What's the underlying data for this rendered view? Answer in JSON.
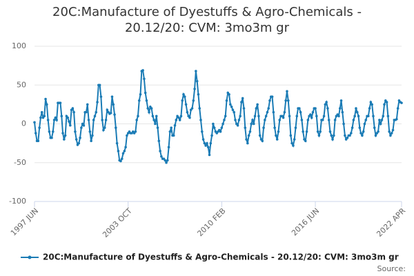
{
  "chart_data": {
    "type": "line",
    "title": "20C:Manufacture of Dyestuffs & Agro-Chemicals - 20.12/20: CVM: 3mo3m gr",
    "source": "Source:",
    "categories": [
      "1997 JUN",
      null,
      null,
      null,
      null,
      null,
      null,
      null,
      null,
      null,
      null,
      null,
      null,
      null,
      null,
      null,
      null,
      null,
      null,
      null,
      null,
      null,
      null,
      null,
      null,
      null,
      null,
      null,
      null,
      null,
      null,
      null,
      null,
      null,
      null,
      null,
      null,
      null,
      null,
      null,
      null,
      null,
      null,
      null,
      null,
      null,
      null,
      null,
      null,
      null,
      null,
      null,
      null,
      null,
      null,
      null,
      null,
      null,
      null,
      null,
      null,
      null,
      null,
      null,
      null,
      null,
      null,
      null,
      null,
      null,
      null,
      null,
      null,
      null,
      null,
      null,
      "2003 OCT",
      null,
      null,
      null,
      null,
      null,
      null,
      null,
      null,
      null,
      null,
      null,
      null,
      null,
      null,
      null,
      null,
      null,
      null,
      null,
      null,
      null,
      null,
      null,
      null,
      null,
      null,
      null,
      null,
      null,
      null,
      null,
      null,
      null,
      null,
      null,
      null,
      null,
      null,
      null,
      null,
      null,
      null,
      null,
      null,
      null,
      null,
      null,
      null,
      null,
      null,
      null,
      null,
      null,
      null,
      null,
      null,
      null,
      null,
      null,
      null,
      null,
      null,
      null,
      null,
      null,
      null,
      null,
      null,
      null,
      null,
      null,
      null,
      null,
      null,
      null,
      "2010 FEB",
      null,
      null,
      null,
      null,
      null,
      null,
      null,
      null,
      null,
      null,
      null,
      null,
      null,
      null,
      null,
      null,
      null,
      null,
      null,
      null,
      null,
      null,
      null,
      null,
      null,
      null,
      null,
      null,
      null,
      null,
      null,
      null,
      null,
      null,
      null,
      null,
      null,
      null,
      null,
      null,
      null,
      null,
      null,
      null,
      null,
      null,
      null,
      null,
      null,
      null,
      null,
      null,
      null,
      null,
      null,
      null,
      null,
      null,
      null,
      null,
      null,
      null,
      null,
      null,
      null,
      null,
      null,
      null,
      null,
      null,
      null,
      null,
      null,
      null,
      null,
      "2016 JUN",
      null,
      null,
      null,
      null,
      null,
      null,
      null,
      null,
      null,
      null,
      null,
      null,
      null,
      null,
      null,
      null,
      null,
      null,
      null,
      null,
      null,
      null,
      null,
      null,
      null,
      null,
      null,
      null,
      null,
      null,
      null,
      null,
      null,
      null,
      null,
      null,
      null,
      null,
      null,
      null,
      null,
      null,
      null,
      null,
      null,
      null,
      null,
      null,
      null,
      null,
      null,
      null,
      null,
      null,
      null,
      null,
      null,
      null,
      null,
      null,
      null,
      null,
      null,
      null,
      null,
      null,
      null,
      null,
      null,
      "2022 APR"
    ],
    "series": [
      {
        "name": "20C:Manufacture of Dyestuffs & Agro-Chemicals - 20.12/20: CVM: 3mo3m gr",
        "color": "#1a7bb5",
        "values": [
          2,
          -12,
          -22,
          -22,
          -5,
          8,
          15,
          8,
          10,
          32,
          25,
          5,
          -10,
          -18,
          -18,
          -10,
          5,
          8,
          5,
          27,
          27,
          27,
          10,
          -12,
          -20,
          -15,
          10,
          8,
          3,
          -2,
          18,
          20,
          15,
          -10,
          -20,
          -27,
          -25,
          -18,
          -5,
          0,
          -2,
          15,
          15,
          25,
          5,
          -10,
          -22,
          -15,
          5,
          10,
          15,
          28,
          50,
          50,
          35,
          5,
          -8,
          -5,
          5,
          18,
          15,
          13,
          14,
          35,
          25,
          12,
          -5,
          -25,
          -35,
          -47,
          -48,
          -45,
          -38,
          -35,
          -30,
          -15,
          -12,
          -10,
          -12,
          -12,
          -10,
          -12,
          -10,
          5,
          10,
          30,
          38,
          68,
          69,
          58,
          40,
          30,
          20,
          15,
          22,
          20,
          10,
          5,
          0,
          10,
          -5,
          -22,
          -35,
          -42,
          -45,
          -45,
          -47,
          -50,
          -47,
          -30,
          -10,
          -5,
          -15,
          -15,
          -2,
          5,
          10,
          8,
          5,
          10,
          30,
          38,
          35,
          25,
          15,
          10,
          8,
          18,
          20,
          30,
          45,
          68,
          55,
          38,
          20,
          5,
          -10,
          -20,
          -25,
          -28,
          -25,
          -30,
          -40,
          -25,
          -15,
          0,
          -5,
          -10,
          -12,
          -10,
          -8,
          -10,
          -5,
          0,
          5,
          10,
          30,
          40,
          38,
          25,
          22,
          18,
          15,
          5,
          0,
          -2,
          5,
          10,
          28,
          33,
          20,
          -5,
          -20,
          -25,
          -15,
          -10,
          0,
          5,
          0,
          10,
          20,
          25,
          10,
          -15,
          -20,
          -22,
          -5,
          5,
          10,
          15,
          20,
          30,
          35,
          35,
          15,
          -5,
          -15,
          -20,
          -10,
          5,
          10,
          10,
          8,
          15,
          30,
          42,
          30,
          10,
          -15,
          -25,
          -28,
          -20,
          -5,
          10,
          20,
          20,
          15,
          5,
          -10,
          -20,
          -22,
          -10,
          5,
          10,
          12,
          8,
          15,
          20,
          20,
          10,
          -10,
          -15,
          -10,
          5,
          5,
          10,
          25,
          28,
          20,
          5,
          -10,
          -15,
          -20,
          -15,
          5,
          10,
          12,
          10,
          20,
          30,
          15,
          0,
          -15,
          -20,
          -18,
          -15,
          -15,
          -12,
          -5,
          5,
          10,
          20,
          15,
          10,
          -5,
          -12,
          -15,
          -10,
          0,
          5,
          10,
          10,
          20,
          28,
          25,
          10,
          -5,
          -15,
          -12,
          -10,
          5,
          0,
          5,
          10,
          25,
          30,
          28,
          10,
          -10,
          -15,
          -12,
          -8,
          5,
          5,
          6,
          20,
          30,
          28,
          27
        ]
      }
    ],
    "ylim": [
      -100,
      100
    ],
    "yticks": [
      -100,
      -50,
      0,
      50,
      100
    ],
    "grid": true
  }
}
